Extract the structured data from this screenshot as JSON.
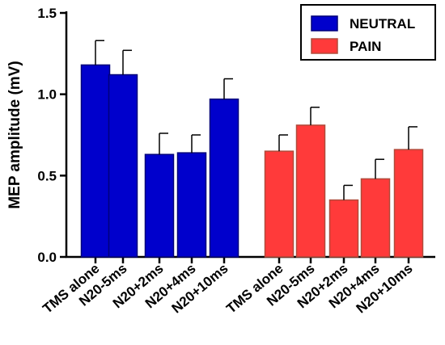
{
  "chart_data": {
    "type": "bar",
    "title": "",
    "xlabel": "",
    "ylabel": "MEP amplitude (mV)",
    "ylim": [
      0,
      1.5
    ],
    "yticks": [
      "0.0",
      "0.5",
      "1.0",
      "1.5"
    ],
    "grid": false,
    "legend_position": "top-right",
    "categories": [
      "TMS alone",
      "N20-5ms",
      "N20+2ms",
      "N20+4ms",
      "N20+10ms"
    ],
    "series": [
      {
        "name": "NEUTRAL",
        "color": "#0000cc",
        "edge_color": "#00007a",
        "values": [
          1.18,
          1.12,
          0.63,
          0.64,
          0.97
        ],
        "errors": [
          0.15,
          0.15,
          0.13,
          0.11,
          0.125
        ]
      },
      {
        "name": "PAIN",
        "color": "#ff3a3a",
        "edge_color": "#b04a3a",
        "values": [
          0.65,
          0.81,
          0.35,
          0.48,
          0.66
        ],
        "errors": [
          0.1,
          0.11,
          0.09,
          0.12,
          0.14
        ]
      }
    ]
  }
}
